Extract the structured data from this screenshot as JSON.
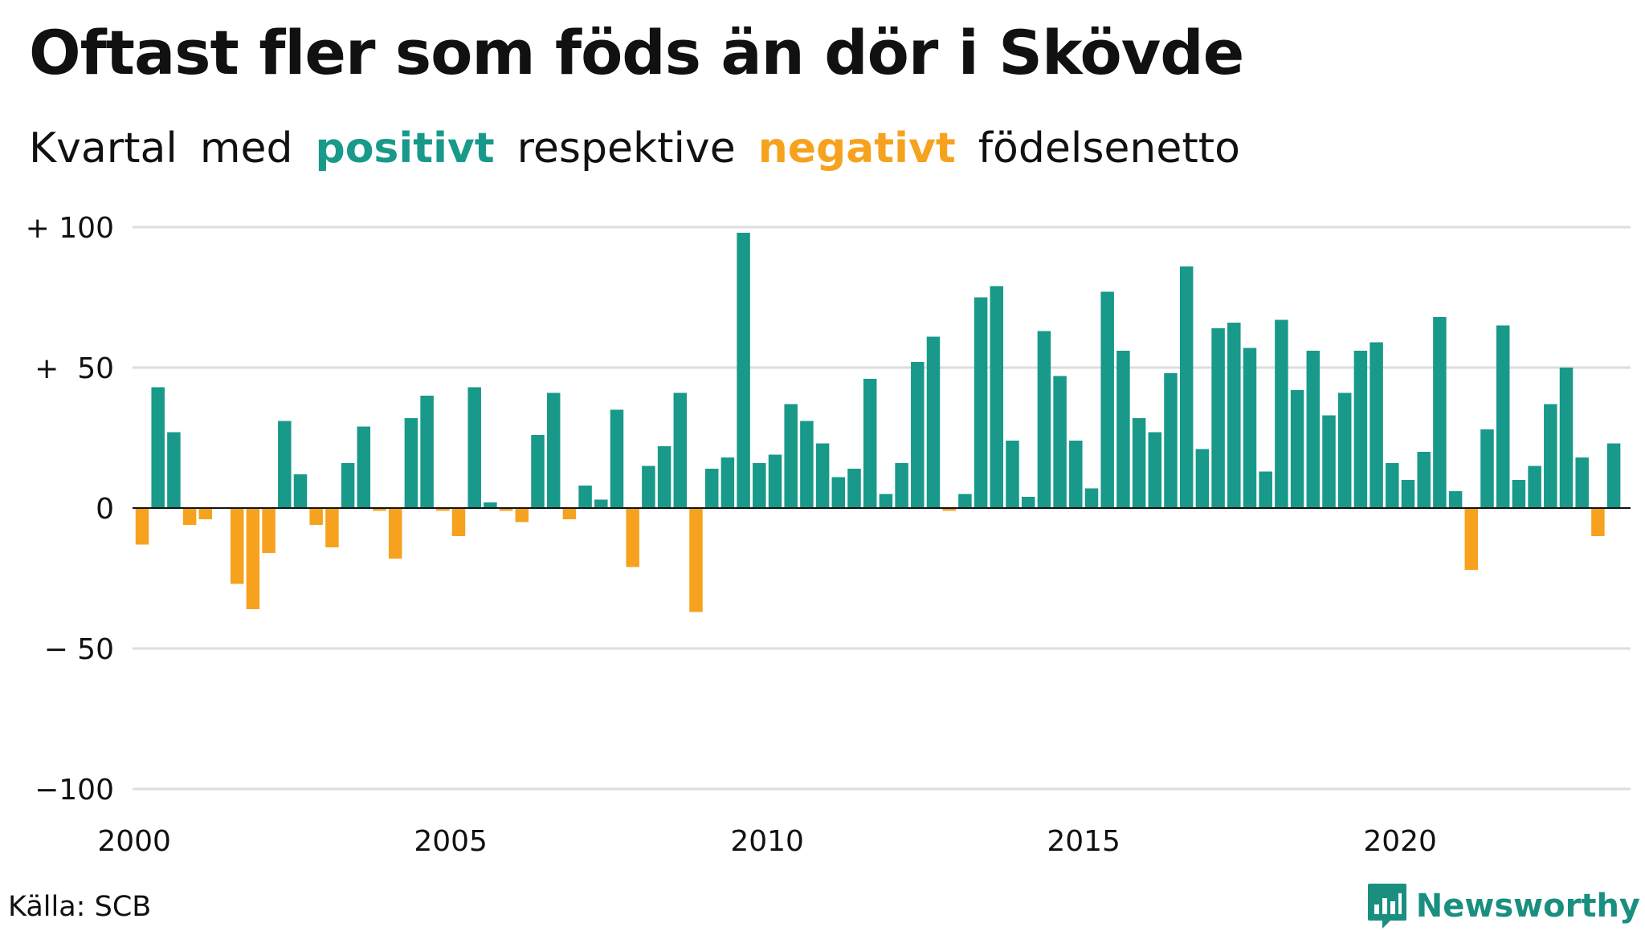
{
  "title": "Oftast fler som föds än dör i Skövde",
  "subtitle": {
    "parts": [
      {
        "text": "Kvartal",
        "style": "plain"
      },
      {
        "text": "med",
        "style": "plain"
      },
      {
        "text": "positivt",
        "style": "pos"
      },
      {
        "text": "respektive",
        "style": "plain"
      },
      {
        "text": "negativt",
        "style": "neg"
      },
      {
        "text": "födelsenetto",
        "style": "plain"
      }
    ]
  },
  "source": "Källa: SCB",
  "brand": {
    "name": "Newsworthy",
    "icon": "bar-chart-speech-bubble-icon"
  },
  "colors": {
    "positive": "#18998A",
    "negative": "#F6A21E",
    "grid": "#dddddd",
    "text": "#111111"
  },
  "chart_data": {
    "type": "bar",
    "x_unit": "quarter",
    "start_year": 2000,
    "ylim": [
      -100,
      100
    ],
    "yticks": [
      {
        "value": 100,
        "label": "+ 100"
      },
      {
        "value": 50,
        "label": "+  50"
      },
      {
        "value": 0,
        "label": "0"
      },
      {
        "value": -50,
        "label": "− 50"
      },
      {
        "value": -100,
        "label": "−100"
      }
    ],
    "xticks": [
      {
        "year": 2000,
        "label": "2000"
      },
      {
        "year": 2005,
        "label": "2005"
      },
      {
        "year": 2010,
        "label": "2010"
      },
      {
        "year": 2015,
        "label": "2015"
      },
      {
        "year": 2020,
        "label": "2020"
      }
    ],
    "grid": true,
    "values": [
      -13,
      43,
      27,
      -6,
      -4,
      0,
      -27,
      -36,
      -16,
      31,
      12,
      -6,
      -14,
      16,
      29,
      -1,
      -18,
      32,
      40,
      -1,
      -10,
      43,
      2,
      -1,
      -5,
      26,
      41,
      -4,
      8,
      3,
      35,
      -21,
      15,
      22,
      41,
      -37,
      14,
      18,
      98,
      16,
      19,
      37,
      31,
      23,
      11,
      14,
      46,
      5,
      16,
      52,
      61,
      -1,
      5,
      75,
      79,
      24,
      4,
      63,
      47,
      24,
      7,
      77,
      56,
      32,
      27,
      48,
      86,
      21,
      64,
      66,
      57,
      13,
      67,
      42,
      56,
      33,
      41,
      56,
      59,
      16,
      10,
      20,
      68,
      6,
      -22,
      28,
      65,
      10,
      15,
      37,
      50,
      18,
      -10,
      23
    ]
  }
}
